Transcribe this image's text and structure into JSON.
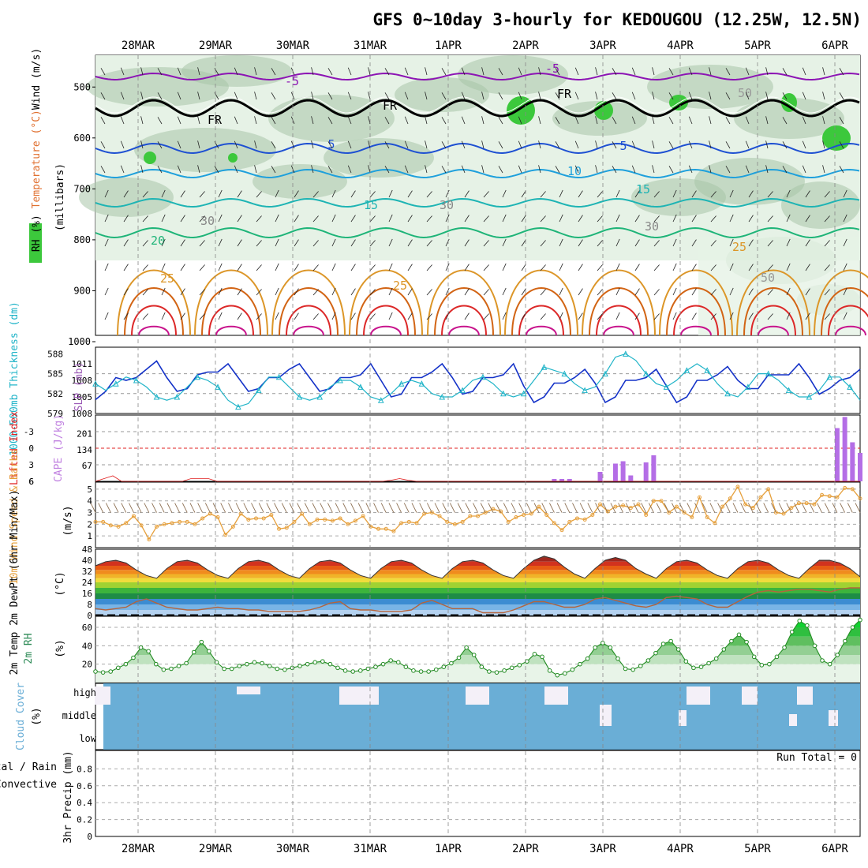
{
  "title": "GFS 0~10day 3-hourly for KEDOUGOU (12.25W, 12.5N)",
  "dates": [
    "28MAR",
    "29MAR",
    "30MAR",
    "31MAR",
    "1APR",
    "2APR",
    "3APR",
    "4APR",
    "5APR",
    "6APR"
  ],
  "colors": {
    "rh_green": "#3cc83c",
    "rh_light": "#e6f2e6",
    "rh_mid": "#a8c4a8",
    "rh_dark": "#6e8e6e",
    "temp_purple": "#8c14b4",
    "temp_blue": "#1e50d2",
    "temp_lightblue": "#1ea0dc",
    "temp_teal": "#1eb4b4",
    "temp_green": "#1eb478",
    "temp_orange": "#dc9628",
    "temp_darkorange": "#d26414",
    "temp_red": "#dc2828",
    "temp_magenta": "#c8148c",
    "slp": "#1432c8",
    "thickness": "#20b4c8",
    "lifted": "#e02020",
    "cape": "#b46ee6",
    "wind": "#e6a03c",
    "barb": "#8c6e50",
    "dew": "#b4643c",
    "rh2m": "#228b22",
    "cloud": "#6aaed6",
    "cloud_gap": "#f4f0f8"
  },
  "chart_data": [
    {
      "type": "heatmap",
      "panel": "upper-air",
      "y_label_parts": [
        "RH (%)",
        "Temperature (°C)",
        "Wind (m/s)"
      ],
      "y_label_units": "(millibars)",
      "yticks": [
        500,
        600,
        700,
        800,
        900,
        1000
      ],
      "ylim": [
        1000,
        450
      ],
      "contour_labels": [
        "-5",
        "-5",
        "5",
        "5",
        "10",
        "15",
        "15",
        "20",
        "25",
        "25",
        "25",
        "FR",
        "FR",
        "FR",
        "30",
        "30",
        "30",
        "50",
        "50"
      ],
      "note": "Temperature contours and RH shading vs. pressure level; wind barbs overlay"
    },
    {
      "type": "line",
      "panel": "slp-thickness",
      "y_label_left": "1000-500mb Thickness (dm)",
      "y_label_right": "SLP (mb)",
      "yticks_left": [
        579,
        582,
        585,
        588
      ],
      "yticks_right": [
        1005,
        1008,
        1011
      ],
      "extra_tick": "1008",
      "series": [
        {
          "name": "SLP (mb)",
          "values": [
            1004.5,
            1006,
            1008.5,
            1008,
            1008.5,
            1010,
            1011.5,
            1008.5,
            1006,
            1006.5,
            1009,
            1009.5,
            1009.5,
            1011,
            1008.5,
            1006,
            1006.5,
            1008.5,
            1008.5,
            1010,
            1011,
            1008.5,
            1006,
            1006.5,
            1008.5,
            1008.5,
            1009,
            1011,
            1008,
            1005,
            1005.5,
            1008.5,
            1008.5,
            1009.5,
            1011,
            1008.5,
            1005.5,
            1006,
            1008.5,
            1008.5,
            1009,
            1011,
            1007,
            1004,
            1005,
            1007.5,
            1007.5,
            1008.5,
            1010,
            1007.5,
            1004,
            1005,
            1008,
            1008,
            1008.5,
            1010,
            1007,
            1004,
            1005,
            1008,
            1008,
            1009,
            1010.5,
            1008,
            1006.5,
            1006.5,
            1009,
            1009,
            1009,
            1011,
            1008.5,
            1005.5,
            1006.5,
            1008,
            1008.5,
            1010
          ]
        },
        {
          "name": "1000-500mb Thickness (dm)",
          "values": [
            583.5,
            582.5,
            583.5,
            584.5,
            584,
            583,
            581.5,
            581,
            581.5,
            583,
            584.5,
            584,
            583,
            581,
            580,
            580.5,
            582.5,
            584.5,
            584.5,
            583,
            581.5,
            581,
            581.5,
            583,
            584,
            584,
            583,
            581.5,
            581,
            582,
            583.5,
            584,
            583.5,
            582,
            581.5,
            581.5,
            582.5,
            584,
            584.5,
            583.5,
            582,
            581.5,
            582,
            584,
            586,
            585.5,
            585,
            583.5,
            582.5,
            583,
            585,
            587.5,
            588,
            587,
            585,
            583.5,
            583,
            584,
            585.5,
            586.5,
            585.5,
            583.5,
            582,
            581.5,
            583,
            585,
            585,
            584,
            582.5,
            581.5,
            581.5,
            582.5,
            584.5,
            584.5,
            583,
            581
          ]
        }
      ]
    },
    {
      "type": "bar",
      "panel": "lifted-cape",
      "y_label_left": "Lifted Index",
      "y_label_right": "CAPE (J/kg)",
      "yticks_left": [
        -3,
        0,
        3,
        6
      ],
      "yticks_right": [
        67,
        134,
        201
      ],
      "series": [
        {
          "name": "CAPE (J/kg)",
          "values": [
            0,
            0,
            0,
            0,
            0,
            0,
            0,
            0,
            0,
            0,
            0,
            0,
            0,
            0,
            0,
            0,
            0,
            0,
            0,
            0,
            0,
            0,
            0,
            0,
            0,
            0,
            0,
            0,
            0,
            0,
            0,
            0,
            0,
            0,
            0,
            0,
            0,
            0,
            0,
            0,
            0,
            0,
            0,
            0,
            0,
            0,
            0,
            0,
            0,
            0,
            0,
            0,
            0,
            0,
            0,
            0,
            0,
            0,
            0,
            0,
            10,
            10,
            10,
            0,
            0,
            0,
            40,
            0,
            75,
            85,
            25,
            0,
            80,
            110,
            0,
            0,
            0,
            0,
            0,
            0,
            0,
            0,
            0,
            0,
            0,
            0,
            0,
            0,
            0,
            0,
            0,
            0,
            0,
            0,
            0,
            0,
            0,
            225,
            272,
            165,
            120
          ]
        },
        {
          "name": "Lifted Index",
          "values": [
            6,
            5.5,
            5,
            6,
            6,
            6,
            6,
            6,
            6,
            6,
            6,
            5.5,
            5.5,
            5.5,
            6,
            6,
            6,
            6,
            6,
            6,
            6,
            6,
            6,
            6,
            6,
            6,
            6,
            6,
            6,
            6,
            6,
            6,
            6,
            6,
            5.8,
            5.5,
            5.8,
            6,
            6,
            6,
            6,
            6,
            6,
            6,
            6,
            6,
            6,
            6,
            6,
            6,
            6,
            6,
            6,
            6,
            6,
            6,
            6,
            6,
            6,
            6,
            6,
            6,
            6,
            6,
            6,
            6,
            6,
            6,
            6,
            6,
            6,
            6,
            6,
            6,
            6,
            6,
            6,
            6,
            6,
            6,
            6,
            6,
            6,
            6,
            6,
            6,
            6,
            6,
            6
          ]
        }
      ]
    },
    {
      "type": "line",
      "panel": "10m-wind",
      "y_label": "10m Wind Speed & Barbs",
      "y_units": "(m/s)",
      "yticks": [
        1,
        2,
        3,
        4,
        5
      ],
      "series": [
        {
          "name": "10m Wind Speed (m/s)",
          "values": [
            2.2,
            2.2,
            1.9,
            1.8,
            2.1,
            2.7,
            1.9,
            0.7,
            1.8,
            2.0,
            2.1,
            2.2,
            2.2,
            2.0,
            2.5,
            2.9,
            2.6,
            1.1,
            1.8,
            2.9,
            2.4,
            2.5,
            2.5,
            2.8,
            1.6,
            1.7,
            2.2,
            2.9,
            2.0,
            2.4,
            2.4,
            2.3,
            2.5,
            2.0,
            2.3,
            2.7,
            1.8,
            1.6,
            1.6,
            1.4,
            2.1,
            2.2,
            2.1,
            2.9,
            3.0,
            2.7,
            2.2,
            2.0,
            2.2,
            2.7,
            2.7,
            3.0,
            3.3,
            3.1,
            2.2,
            2.6,
            2.8,
            2.9,
            3.5,
            2.8,
            2.1,
            1.5,
            2.2,
            2.5,
            2.4,
            2.8,
            3.7,
            3.1,
            3.5,
            3.6,
            3.4,
            3.7,
            2.8,
            4.0,
            4.0,
            3.0,
            3.5,
            3.0,
            2.6,
            4.3,
            2.6,
            2.1,
            3.5,
            4.2,
            5.2,
            3.7,
            3.4,
            4.3,
            5.0,
            3.0,
            2.9,
            3.4,
            3.8,
            3.8,
            3.7,
            4.5,
            4.4,
            4.3,
            5.1,
            5.0,
            4.2
          ]
        }
      ]
    },
    {
      "type": "area",
      "panel": "2m-temp",
      "y_label": "2m Temp 2m DewPt (6hr Min/Max)",
      "y_units": "(°C)",
      "yticks": [
        0,
        8,
        16,
        24,
        32,
        40,
        48
      ],
      "series": [
        {
          "name": "2m Temp",
          "values": [
            36,
            39,
            40,
            38,
            33,
            29,
            27,
            34,
            39,
            40,
            38,
            33,
            29,
            27,
            34,
            39,
            40,
            38,
            33,
            29,
            27,
            34,
            39,
            40,
            38,
            33,
            29,
            27,
            34,
            39,
            40,
            38,
            33,
            29,
            27,
            34,
            39,
            40,
            38,
            33,
            29,
            27,
            34,
            40,
            43,
            41,
            35,
            30,
            27,
            34,
            40,
            42,
            40,
            34,
            30,
            27,
            34,
            39,
            40,
            38,
            33,
            29,
            27,
            34,
            39,
            40,
            38,
            33,
            29,
            27,
            34,
            40,
            40,
            38,
            34,
            28
          ]
        },
        {
          "name": "2m DewPt",
          "values": [
            5,
            4,
            5,
            6,
            10,
            12,
            9,
            6,
            5,
            4,
            4,
            5,
            6,
            5,
            5,
            4,
            4,
            3,
            3,
            3,
            3,
            4,
            6,
            9,
            10,
            5,
            4,
            4,
            3,
            3,
            3,
            4,
            9,
            11,
            8,
            5,
            5,
            5,
            2,
            2,
            2,
            4,
            7,
            10,
            10,
            8,
            6,
            6,
            8,
            12,
            13,
            11,
            9,
            7,
            6,
            8,
            13,
            14,
            13,
            12,
            8,
            6,
            6,
            10,
            14,
            17,
            18,
            17,
            18,
            19,
            19,
            18,
            17,
            19,
            20,
            20
          ]
        }
      ]
    },
    {
      "type": "area",
      "panel": "2m-rh",
      "y_label": "2m RH",
      "y_units": "(%)",
      "yticks": [
        20,
        40,
        60
      ],
      "series": [
        {
          "name": "2m RH (%)",
          "values": [
            12,
            11,
            12,
            16,
            20,
            27,
            38,
            34,
            20,
            14,
            15,
            18,
            21,
            33,
            44,
            34,
            22,
            15,
            15,
            18,
            20,
            22,
            21,
            18,
            15,
            14,
            16,
            18,
            20,
            22,
            23,
            20,
            16,
            13,
            12,
            13,
            15,
            17,
            20,
            24,
            22,
            17,
            13,
            12,
            12,
            14,
            17,
            21,
            27,
            38,
            30,
            17,
            12,
            11,
            13,
            16,
            19,
            23,
            31,
            28,
            13,
            8,
            10,
            14,
            20,
            26,
            38,
            43,
            38,
            26,
            15,
            14,
            18,
            24,
            32,
            42,
            45,
            36,
            23,
            16,
            17,
            21,
            26,
            36,
            45,
            52,
            44,
            28,
            19,
            20,
            28,
            38,
            55,
            67,
            62,
            40,
            24,
            20,
            30,
            45,
            60,
            68
          ]
        }
      ]
    },
    {
      "type": "heatmap",
      "panel": "cloud-cover",
      "y_label": "Cloud Cover",
      "y_units": "(%)",
      "levels": [
        "high",
        "middle",
        "low"
      ]
    },
    {
      "type": "bar",
      "panel": "precip",
      "y_label_parts": [
        "Total / Rain",
        "Convective"
      ],
      "y_label": "3hr Precip (mm)",
      "yticks": [
        "0",
        "0.2",
        "0.4",
        "0.6",
        "0.8"
      ],
      "ylim": [
        0,
        1
      ],
      "run_total": "Run Total = 0",
      "series": [
        {
          "name": "3hr Precip (mm)",
          "values": [
            0
          ]
        }
      ]
    }
  ]
}
